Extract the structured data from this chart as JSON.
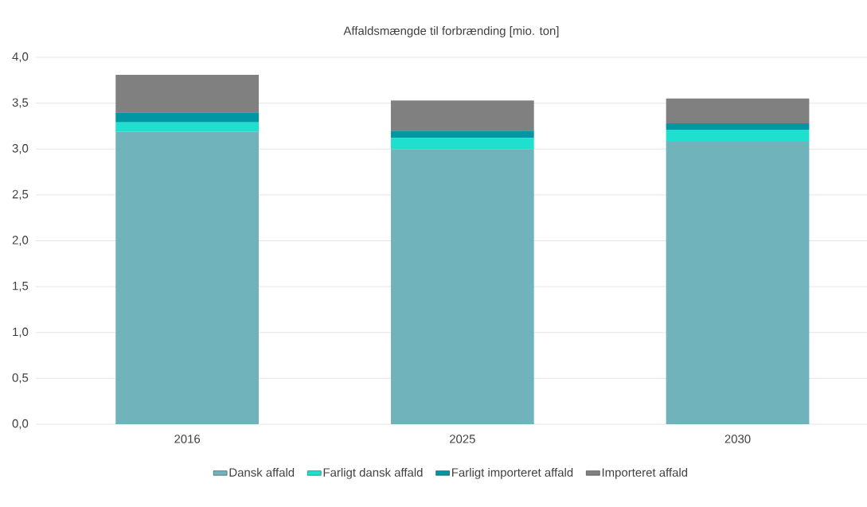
{
  "chart_data": {
    "type": "bar",
    "stacked": true,
    "title": "Affaldsmængde til forbrænding [mio. ton]",
    "categories": [
      "2016",
      "2025",
      "2030"
    ],
    "series": [
      {
        "name": "Dansk affald",
        "color": "#70b3bb",
        "values": [
          3.19,
          3.0,
          3.08
        ]
      },
      {
        "name": "Farligt dansk affald",
        "color": "#1fe0cf",
        "values": [
          0.1,
          0.12,
          0.13
        ]
      },
      {
        "name": "Farligt importeret affald",
        "color": "#0096a3",
        "values": [
          0.11,
          0.08,
          0.07
        ]
      },
      {
        "name": "Importeret affald",
        "color": "#808080",
        "values": [
          0.41,
          0.33,
          0.27
        ]
      }
    ],
    "ylim": [
      0,
      4.0
    ],
    "yticks": [
      {
        "value": 0,
        "label": "0,0"
      },
      {
        "value": 0.5,
        "label": "0,5"
      },
      {
        "value": 1.0,
        "label": "1,0"
      },
      {
        "value": 1.5,
        "label": "1,5"
      },
      {
        "value": 2.0,
        "label": "2,0"
      },
      {
        "value": 2.5,
        "label": "2,5"
      },
      {
        "value": 3.0,
        "label": "3,0"
      },
      {
        "value": 3.5,
        "label": "3,5"
      },
      {
        "value": 4.0,
        "label": "4,0"
      }
    ],
    "grid": "y",
    "legend": "bottom"
  }
}
